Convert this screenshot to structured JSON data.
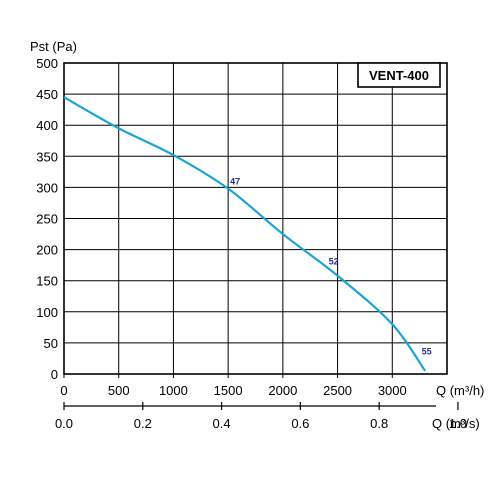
{
  "chart_data": {
    "type": "line",
    "model_label": "VENT-400",
    "ylabel": "Pst (Pa)",
    "xlabel_flow_h": "Q (m³/h)",
    "xlabel_flow_s": "Q (m³/s)",
    "ylim": [
      0,
      500
    ],
    "xlim": [
      0,
      3300
    ],
    "y_ticks": [
      "0",
      "50",
      "100",
      "150",
      "200",
      "250",
      "300",
      "350",
      "400",
      "450",
      "500"
    ],
    "x_ticks_h": [
      "0",
      "500",
      "1000",
      "1500",
      "2000",
      "2500",
      "3000"
    ],
    "x_ticks_s": [
      "0.0",
      "0.2",
      "0.4",
      "0.6",
      "0.8",
      "1.0"
    ],
    "grid": true,
    "curve_color": "#1aa3d6",
    "label_color": "#2b2f8f",
    "series": [
      {
        "x": [
          0,
          500,
          1000,
          1500,
          2000,
          2500,
          3000,
          3300
        ],
        "y": [
          445,
          395,
          352,
          298,
          225,
          158,
          80,
          5
        ]
      }
    ],
    "point_labels": [
      {
        "x": 1500,
        "y": 298,
        "text": "47"
      },
      {
        "x": 2400,
        "y": 170,
        "text": "52"
      },
      {
        "x": 3250,
        "y": 25,
        "text": "55"
      }
    ]
  }
}
